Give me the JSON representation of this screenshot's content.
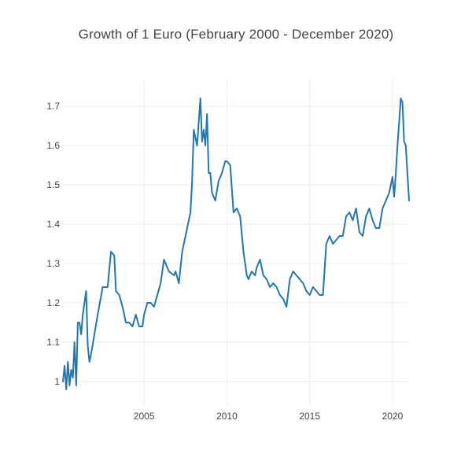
{
  "chart_data": {
    "type": "line",
    "title": "Growth of 1 Euro (February 2000 - December 2020)",
    "xlabel": "",
    "ylabel": "",
    "x_range": [
      2000.1,
      2021.0
    ],
    "ylim": [
      0.94,
      1.77
    ],
    "x_ticks": [
      2005,
      2010,
      2015,
      2020
    ],
    "x_tick_labels": [
      "2005",
      "2010",
      "2015",
      "2020"
    ],
    "y_ticks": [
      1,
      1.1,
      1.2,
      1.3,
      1.4,
      1.5,
      1.6,
      1.7
    ],
    "y_tick_labels": [
      "1",
      "1.1",
      "1.2",
      "1.3",
      "1.4",
      "1.5",
      "1.6",
      "1.7"
    ],
    "grid": true,
    "legend": "none",
    "line_color": "#1f77b4",
    "series": [
      {
        "x": [
          2000.1,
          2000.2,
          2000.3,
          2000.4,
          2000.5,
          2000.6,
          2000.7,
          2000.8,
          2000.9,
          2001.0,
          2001.1,
          2001.2,
          2001.3,
          2001.5,
          2001.6,
          2001.7,
          2001.8,
          2002.0,
          2002.2,
          2002.5,
          2002.8,
          2003.0,
          2003.2,
          2003.3,
          2003.5,
          2003.7,
          2003.9,
          2004.1,
          2004.3,
          2004.5,
          2004.7,
          2004.9,
          2005.0,
          2005.2,
          2005.4,
          2005.6,
          2005.8,
          2006.0,
          2006.2,
          2006.5,
          2006.8,
          2006.9,
          2007.1,
          2007.3,
          2007.6,
          2007.8,
          2007.9,
          2008.0,
          2008.2,
          2008.4,
          2008.5,
          2008.6,
          2008.7,
          2008.8,
          2008.9,
          2009.0,
          2009.1,
          2009.3,
          2009.5,
          2009.7,
          2009.9,
          2010.0,
          2010.2,
          2010.4,
          2010.6,
          2010.8,
          2011.0,
          2011.2,
          2011.3,
          2011.5,
          2011.7,
          2011.8,
          2011.9,
          2012.0,
          2012.2,
          2012.4,
          2012.6,
          2012.8,
          2013.0,
          2013.2,
          2013.4,
          2013.6,
          2013.8,
          2014.0,
          2014.2,
          2014.4,
          2014.6,
          2014.8,
          2015.0,
          2015.2,
          2015.4,
          2015.6,
          2015.8,
          2016.0,
          2016.2,
          2016.4,
          2016.6,
          2016.8,
          2017.0,
          2017.2,
          2017.4,
          2017.6,
          2017.8,
          2018.0,
          2018.2,
          2018.4,
          2018.6,
          2018.8,
          2019.0,
          2019.2,
          2019.4,
          2019.6,
          2019.8,
          2020.0,
          2020.1,
          2020.2,
          2020.3,
          2020.4,
          2020.5,
          2020.6,
          2020.7,
          2020.8,
          2020.9,
          2021.0
        ],
        "y": [
          1.0,
          1.04,
          0.98,
          1.05,
          0.99,
          1.03,
          1.01,
          1.1,
          0.99,
          1.15,
          1.15,
          1.12,
          1.17,
          1.23,
          1.09,
          1.05,
          1.07,
          1.12,
          1.17,
          1.24,
          1.24,
          1.33,
          1.32,
          1.23,
          1.22,
          1.19,
          1.15,
          1.15,
          1.14,
          1.17,
          1.14,
          1.14,
          1.17,
          1.2,
          1.2,
          1.19,
          1.22,
          1.25,
          1.31,
          1.28,
          1.27,
          1.28,
          1.25,
          1.33,
          1.39,
          1.43,
          1.51,
          1.64,
          1.6,
          1.72,
          1.61,
          1.64,
          1.6,
          1.68,
          1.53,
          1.53,
          1.48,
          1.46,
          1.51,
          1.53,
          1.56,
          1.56,
          1.55,
          1.43,
          1.44,
          1.42,
          1.33,
          1.27,
          1.26,
          1.28,
          1.27,
          1.29,
          1.3,
          1.31,
          1.27,
          1.26,
          1.24,
          1.25,
          1.24,
          1.22,
          1.21,
          1.19,
          1.26,
          1.28,
          1.27,
          1.26,
          1.25,
          1.23,
          1.22,
          1.24,
          1.23,
          1.22,
          1.22,
          1.35,
          1.37,
          1.35,
          1.36,
          1.37,
          1.37,
          1.42,
          1.43,
          1.41,
          1.44,
          1.38,
          1.37,
          1.42,
          1.44,
          1.41,
          1.39,
          1.39,
          1.44,
          1.46,
          1.48,
          1.52,
          1.47,
          1.53,
          1.6,
          1.66,
          1.72,
          1.71,
          1.61,
          1.6,
          1.53,
          1.46
        ]
      }
    ]
  }
}
